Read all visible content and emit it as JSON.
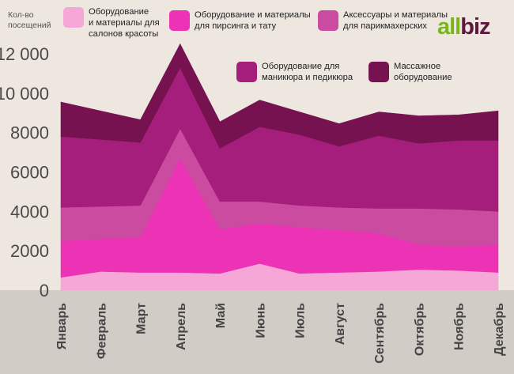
{
  "chart_data": {
    "type": "area",
    "stacked": true,
    "ylabel": "Кол-во посещений",
    "ylim": [
      0,
      12000
    ],
    "yticks": [
      0,
      2000,
      4000,
      6000,
      8000,
      10000,
      12000
    ],
    "ytick_labels": [
      "0",
      "2000",
      "4000",
      "6000",
      "8000",
      "10 000",
      "12 000"
    ],
    "categories": [
      "Январь",
      "Февраль",
      "Март",
      "Апрель",
      "Май",
      "Июнь",
      "Июль",
      "Август",
      "Сентябрь",
      "Октябрь",
      "Ноябрь",
      "Декабрь"
    ],
    "series": [
      {
        "name": "Оборудование и материалы для салонов красоты",
        "color": "#f7a6d8",
        "values": [
          650,
          950,
          900,
          900,
          850,
          1350,
          850,
          900,
          950,
          1050,
          1000,
          900
        ]
      },
      {
        "name": "Оборудование и материалы для пирсинга и тату",
        "color": "#ec33b5",
        "values": [
          1850,
          1650,
          1800,
          5800,
          2250,
          2050,
          2350,
          2150,
          1950,
          1250,
          1250,
          1400
        ]
      },
      {
        "name": "Аксессуары и материалы для парикмахерских",
        "color": "#cb4ba1",
        "values": [
          1700,
          1650,
          1600,
          1500,
          1400,
          1100,
          1100,
          1150,
          1250,
          1850,
          1850,
          1700
        ]
      },
      {
        "name": "Оборудование для маникюра и педикюра",
        "color": "#a51e7c",
        "values": [
          3600,
          3400,
          3200,
          3100,
          2700,
          3800,
          3600,
          3100,
          3700,
          3300,
          3500,
          3600
        ]
      },
      {
        "name": "Массажное оборудование",
        "color": "#76124f",
        "values": [
          1750,
          1450,
          1150,
          1200,
          1350,
          1350,
          1150,
          1150,
          1200,
          1400,
          1300,
          1500
        ]
      }
    ]
  },
  "legend": [
    {
      "label": "Оборудование\nи материалы для\nсалонов красоты",
      "color": "#f7a6d8"
    },
    {
      "label": "Оборудование и материалы\nдля пирсинга и тату",
      "color": "#ec33b5"
    },
    {
      "label": "Аксессуары и материалы\nдля парикмахерских",
      "color": "#cb4ba1"
    },
    {
      "label": "Оборудование для\nманикюра и педикюра",
      "color": "#a51e7c"
    },
    {
      "label": "Массажное\nоборудование",
      "color": "#76124f"
    }
  ],
  "brand": {
    "part1": "all",
    "part2": "biz"
  }
}
